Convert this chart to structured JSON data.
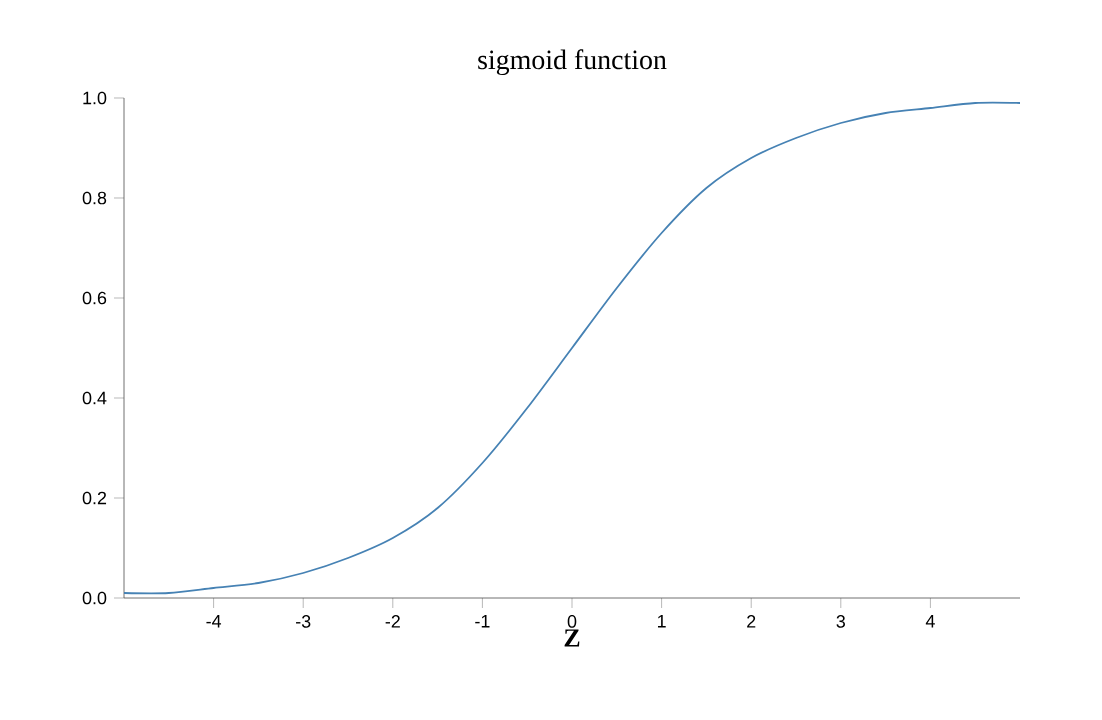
{
  "chart_data": {
    "type": "line",
    "title": "sigmoid function",
    "xlabel": "Z",
    "x": [
      -5,
      -4.5,
      -4,
      -3.5,
      -3,
      -2.5,
      -2,
      -1.5,
      -1,
      -0.5,
      0,
      0.5,
      1,
      1.5,
      2,
      2.5,
      3,
      3.5,
      4,
      4.5,
      5
    ],
    "series": [
      {
        "color": "#4682b4",
        "values": [
          0.01,
          0.01,
          0.02,
          0.03,
          0.05,
          0.08,
          0.12,
          0.18,
          0.27,
          0.38,
          0.5,
          0.62,
          0.73,
          0.82,
          0.88,
          0.92,
          0.95,
          0.97,
          0.98,
          0.99,
          0.99
        ]
      }
    ],
    "xlim": [
      -5,
      5
    ],
    "ylim": [
      0,
      1
    ],
    "xticks": [
      -4,
      -3,
      -2,
      -1,
      0,
      1,
      2,
      3,
      4
    ],
    "yticks": [
      {
        "value": 0,
        "label": "0.0"
      },
      {
        "value": 0.2,
        "label": "0.2"
      },
      {
        "value": 0.4,
        "label": "0.4"
      },
      {
        "value": 0.6,
        "label": "0.6"
      },
      {
        "value": 0.8,
        "label": "0.8"
      },
      {
        "value": 1,
        "label": "1.0"
      }
    ],
    "line_style": "solid"
  }
}
